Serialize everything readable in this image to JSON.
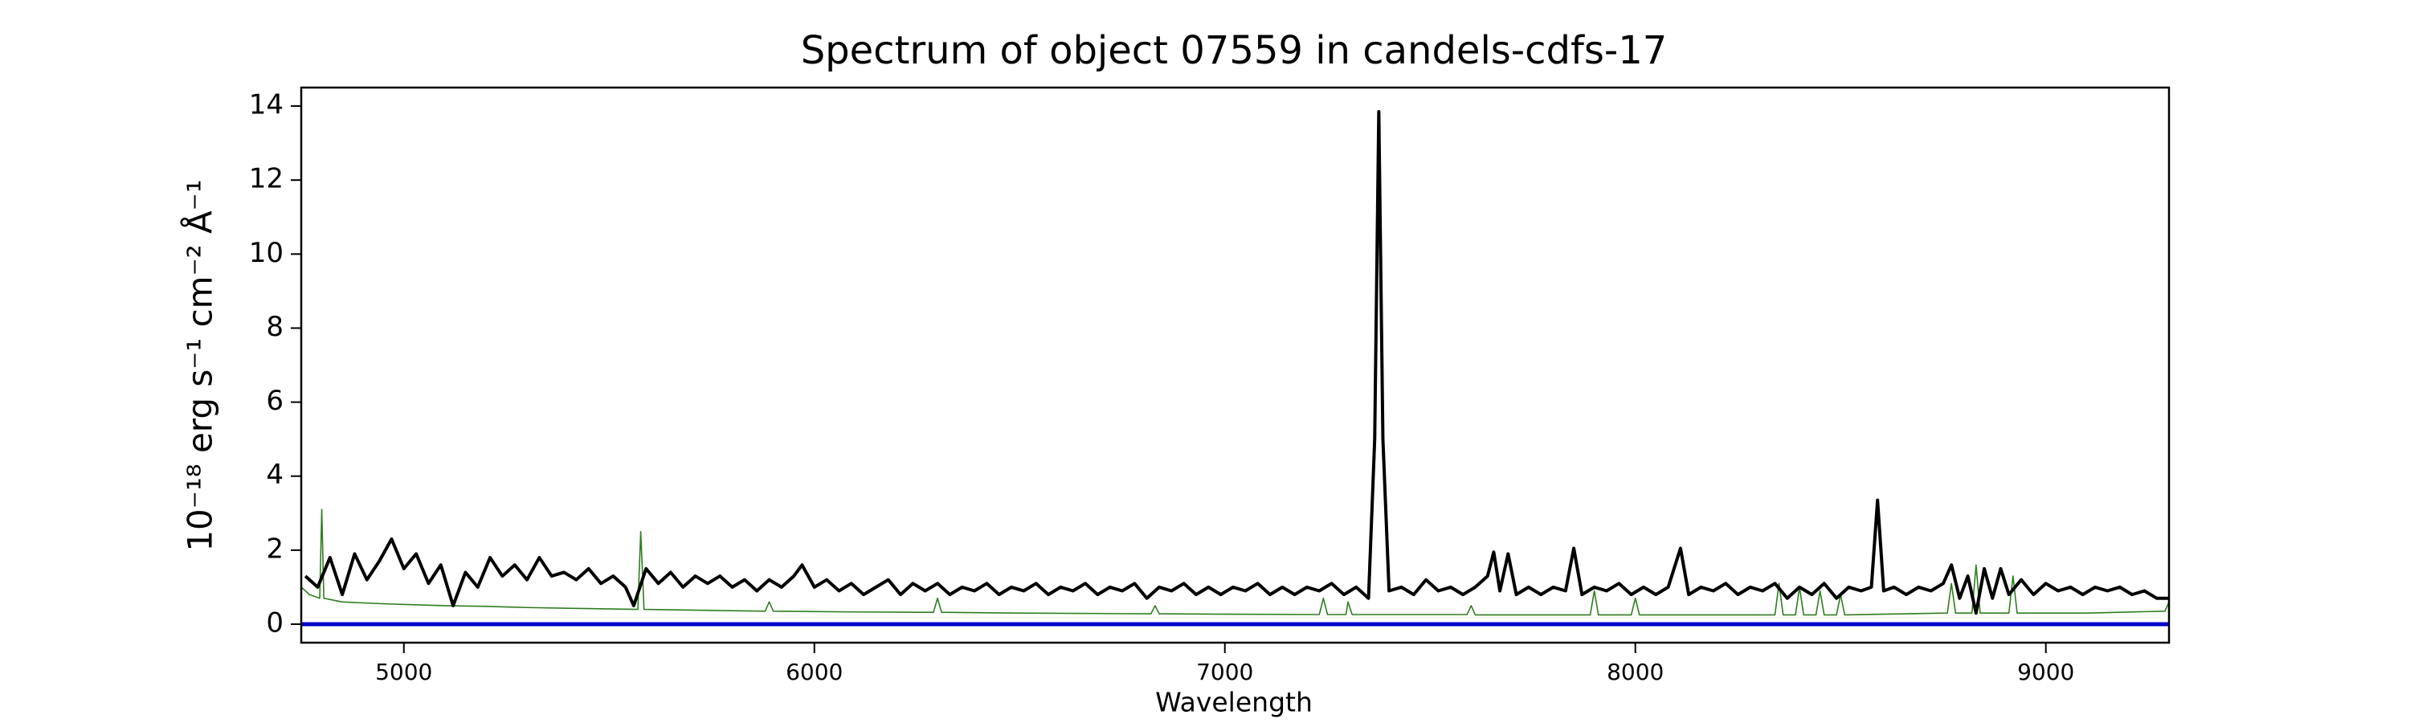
{
  "chart_data": {
    "type": "line",
    "title": "Spectrum of object 07559 in candels-cdfs-17",
    "x_label": "Wavelength",
    "y_label": "10⁻¹⁸ erg s⁻¹ cm⁻² Å⁻¹",
    "xlim": [
      4750,
      9300
    ],
    "ylim": [
      -0.5,
      14.5
    ],
    "xticks": [
      5000,
      6000,
      7000,
      8000,
      9000
    ],
    "yticks": [
      0,
      2,
      4,
      6,
      8,
      10,
      12,
      14
    ],
    "grid": false,
    "series": [
      {
        "color": "#2e7d1f",
        "width": 1.6,
        "x": [
          4750,
          4770,
          4795,
          4800,
          4805,
          4850,
          4950,
          5100,
          5200,
          5300,
          5400,
          5570,
          5577,
          5585,
          5700,
          5880,
          5890,
          5900,
          6100,
          6290,
          6300,
          6310,
          6500,
          6820,
          6830,
          6840,
          7000,
          7230,
          7240,
          7250,
          7295,
          7300,
          7310,
          7590,
          7600,
          7610,
          7890,
          7900,
          7910,
          7990,
          8000,
          8010,
          8200,
          8340,
          8350,
          8360,
          8390,
          8400,
          8410,
          8440,
          8450,
          8460,
          8490,
          8500,
          8510,
          8760,
          8770,
          8780,
          8820,
          8830,
          8840,
          8910,
          8920,
          8930,
          9100,
          9290,
          9300
        ],
        "values": [
          1.0,
          0.8,
          0.7,
          3.1,
          0.7,
          0.6,
          0.55,
          0.5,
          0.48,
          0.45,
          0.43,
          0.4,
          2.5,
          0.4,
          0.38,
          0.35,
          0.6,
          0.35,
          0.33,
          0.32,
          0.7,
          0.32,
          0.3,
          0.28,
          0.5,
          0.28,
          0.27,
          0.26,
          0.7,
          0.26,
          0.26,
          0.6,
          0.26,
          0.26,
          0.5,
          0.25,
          0.25,
          0.9,
          0.25,
          0.25,
          0.7,
          0.25,
          0.25,
          0.25,
          1.1,
          0.25,
          0.25,
          1.0,
          0.25,
          0.25,
          0.9,
          0.25,
          0.25,
          0.8,
          0.25,
          0.3,
          1.1,
          0.3,
          0.3,
          1.6,
          0.3,
          0.3,
          1.3,
          0.3,
          0.3,
          0.35,
          0.6
        ]
      },
      {
        "color": "#000000",
        "width": 4,
        "x": [
          4760,
          4790,
          4820,
          4850,
          4880,
          4910,
          4940,
          4970,
          5000,
          5030,
          5060,
          5090,
          5120,
          5150,
          5180,
          5210,
          5240,
          5270,
          5300,
          5330,
          5360,
          5390,
          5420,
          5450,
          5480,
          5510,
          5540,
          5560,
          5590,
          5620,
          5650,
          5680,
          5710,
          5740,
          5770,
          5800,
          5830,
          5860,
          5890,
          5920,
          5950,
          5970,
          6000,
          6030,
          6060,
          6090,
          6120,
          6150,
          6180,
          6210,
          6240,
          6270,
          6300,
          6330,
          6360,
          6390,
          6420,
          6450,
          6480,
          6510,
          6540,
          6570,
          6600,
          6630,
          6660,
          6690,
          6720,
          6750,
          6780,
          6810,
          6840,
          6870,
          6900,
          6930,
          6960,
          6990,
          7020,
          7050,
          7080,
          7110,
          7140,
          7170,
          7200,
          7230,
          7260,
          7290,
          7320,
          7350,
          7365,
          7375,
          7385,
          7400,
          7430,
          7460,
          7490,
          7520,
          7550,
          7580,
          7610,
          7640,
          7655,
          7670,
          7690,
          7710,
          7740,
          7770,
          7800,
          7830,
          7850,
          7870,
          7900,
          7930,
          7960,
          7990,
          8020,
          8050,
          8080,
          8110,
          8130,
          8160,
          8190,
          8220,
          8250,
          8280,
          8310,
          8340,
          8370,
          8400,
          8430,
          8460,
          8490,
          8520,
          8550,
          8575,
          8590,
          8605,
          8630,
          8660,
          8690,
          8720,
          8750,
          8770,
          8790,
          8810,
          8830,
          8850,
          8870,
          8890,
          8910,
          8940,
          8970,
          9000,
          9030,
          9060,
          9090,
          9120,
          9150,
          9180,
          9210,
          9240,
          9270,
          9300
        ],
        "values": [
          1.3,
          1.0,
          1.8,
          0.8,
          1.9,
          1.2,
          1.7,
          2.3,
          1.5,
          1.9,
          1.1,
          1.6,
          0.5,
          1.4,
          1.0,
          1.8,
          1.3,
          1.6,
          1.2,
          1.8,
          1.3,
          1.4,
          1.2,
          1.5,
          1.1,
          1.3,
          1.0,
          0.5,
          1.5,
          1.1,
          1.4,
          1.0,
          1.3,
          1.1,
          1.3,
          1.0,
          1.2,
          0.9,
          1.2,
          1.0,
          1.3,
          1.6,
          1.0,
          1.2,
          0.9,
          1.1,
          0.8,
          1.0,
          1.2,
          0.8,
          1.1,
          0.9,
          1.1,
          0.8,
          1.0,
          0.9,
          1.1,
          0.8,
          1.0,
          0.9,
          1.1,
          0.8,
          1.0,
          0.9,
          1.1,
          0.8,
          1.0,
          0.9,
          1.1,
          0.7,
          1.0,
          0.9,
          1.1,
          0.8,
          1.0,
          0.8,
          1.0,
          0.9,
          1.1,
          0.8,
          1.0,
          0.8,
          1.0,
          0.9,
          1.1,
          0.8,
          1.0,
          0.7,
          5.0,
          13.85,
          5.0,
          0.9,
          1.0,
          0.8,
          1.2,
          0.9,
          1.0,
          0.8,
          1.0,
          1.3,
          1.95,
          0.9,
          1.9,
          0.8,
          1.0,
          0.8,
          1.0,
          0.9,
          2.05,
          0.8,
          1.0,
          0.9,
          1.1,
          0.8,
          1.0,
          0.8,
          1.0,
          2.05,
          0.8,
          1.0,
          0.9,
          1.1,
          0.8,
          1.0,
          0.9,
          1.1,
          0.7,
          1.0,
          0.8,
          1.1,
          0.7,
          1.0,
          0.9,
          1.0,
          3.35,
          0.9,
          1.0,
          0.8,
          1.0,
          0.9,
          1.1,
          1.6,
          0.7,
          1.3,
          0.3,
          1.5,
          0.7,
          1.5,
          0.8,
          1.2,
          0.8,
          1.1,
          0.9,
          1.0,
          0.8,
          1.0,
          0.9,
          1.0,
          0.8,
          0.9,
          0.7,
          0.7
        ]
      },
      {
        "color": "#0000cc",
        "width": 5,
        "x": [
          4750,
          9300
        ],
        "values": [
          0,
          0
        ]
      }
    ]
  }
}
